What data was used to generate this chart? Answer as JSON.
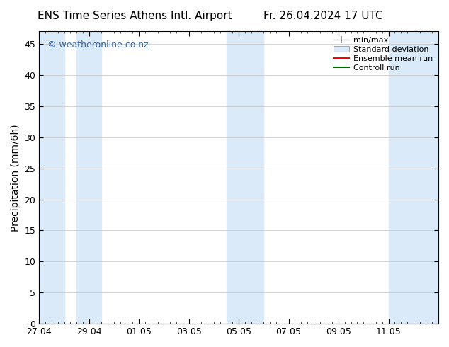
{
  "title_left": "ENS Time Series Athens Intl. Airport",
  "title_right": "Fr. 26.04.2024 17 UTC",
  "ylabel": "Precipitation (mm/6h)",
  "watermark": "© weatheronline.co.nz",
  "ylim": [
    0,
    47
  ],
  "yticks": [
    0,
    5,
    10,
    15,
    20,
    25,
    30,
    35,
    40,
    45
  ],
  "xtick_labels": [
    "27.04",
    "29.04",
    "01.05",
    "03.05",
    "05.05",
    "07.05",
    "09.05",
    "11.05"
  ],
  "xtick_positions": [
    0,
    2,
    4,
    6,
    8,
    10,
    12,
    14
  ],
  "xlim": [
    0,
    16
  ],
  "shade_regions": [
    [
      0.0,
      1.0
    ],
    [
      1.5,
      2.5
    ],
    [
      7.5,
      9.0
    ],
    [
      14.0,
      16.0
    ]
  ],
  "background_color": "#ffffff",
  "shade_color": "#daeaf8",
  "grid_color": "#cccccc",
  "legend_entries": [
    "min/max",
    "Standard deviation",
    "Ensemble mean run",
    "Controll run"
  ],
  "legend_colors_line": [
    "#aaaaaa",
    "#aaaaaa",
    "#ff0000",
    "#006600"
  ],
  "title_fontsize": 11,
  "tick_fontsize": 9,
  "ylabel_fontsize": 10,
  "watermark_color": "#3366aa",
  "watermark_fontsize": 9,
  "legend_fontsize": 8
}
